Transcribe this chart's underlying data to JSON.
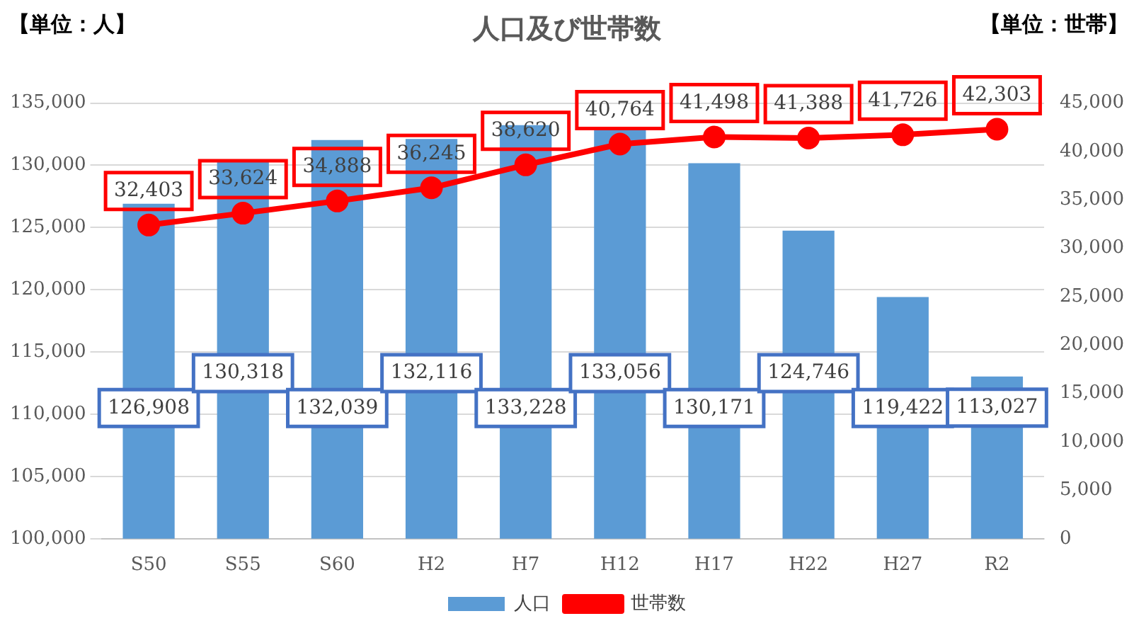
{
  "chart_data": {
    "type": "bar",
    "title": "人口及び世帯数",
    "ylabel": "【単位：人】",
    "y2label": "【単位：世帯】",
    "categories": [
      "S50",
      "S55",
      "S60",
      "H2",
      "H7",
      "H12",
      "H17",
      "H22",
      "H27",
      "R2"
    ],
    "series": [
      {
        "name": "人口",
        "color": "#5b9bd5",
        "values": [
          126908,
          130318,
          132039,
          132116,
          133228,
          133056,
          130171,
          124746,
          119422,
          113027
        ],
        "value_labels": [
          "126,908",
          "130,318",
          "132,039",
          "132,116",
          "133,228",
          "133,056",
          "130,171",
          "124,746",
          "119,422",
          "113,027"
        ]
      },
      {
        "name": "世帯数",
        "type": "line",
        "axis": "y2",
        "color": "#ff0000",
        "marker": "circle",
        "values": [
          32403,
          33624,
          34888,
          36245,
          38620,
          40764,
          41498,
          41388,
          41726,
          42303
        ],
        "value_labels": [
          "32,403",
          "33,624",
          "34,888",
          "36,245",
          "38,620",
          "40,764",
          "41,498",
          "41,388",
          "41,726",
          "42,303"
        ]
      }
    ],
    "ylim": [
      100000,
      135000
    ],
    "yticks": [
      {
        "value": 100000,
        "label": "100,000"
      },
      {
        "value": 105000,
        "label": "105,000"
      },
      {
        "value": 110000,
        "label": "110,000"
      },
      {
        "value": 115000,
        "label": "115,000"
      },
      {
        "value": 120000,
        "label": "120,000"
      },
      {
        "value": 125000,
        "label": "125,000"
      },
      {
        "value": 130000,
        "label": "130,000"
      },
      {
        "value": 135000,
        "label": "135,000"
      }
    ],
    "y2lim": [
      0,
      45000
    ],
    "y2ticks": [
      0,
      {
        "value": 5000,
        "label": "5,000"
      },
      {
        "value": 10000,
        "label": "10,000"
      },
      {
        "value": 15000,
        "label": "15,000"
      },
      {
        "value": 20000,
        "label": "20,000"
      },
      {
        "value": 25000,
        "label": "25,000"
      },
      {
        "value": 30000,
        "label": "30,000"
      },
      {
        "value": 35000,
        "label": "35,000"
      },
      {
        "value": 40000,
        "label": "40,000"
      },
      {
        "value": 45000,
        "label": "45,000"
      }
    ],
    "grid": "y",
    "legend": "bottom"
  }
}
